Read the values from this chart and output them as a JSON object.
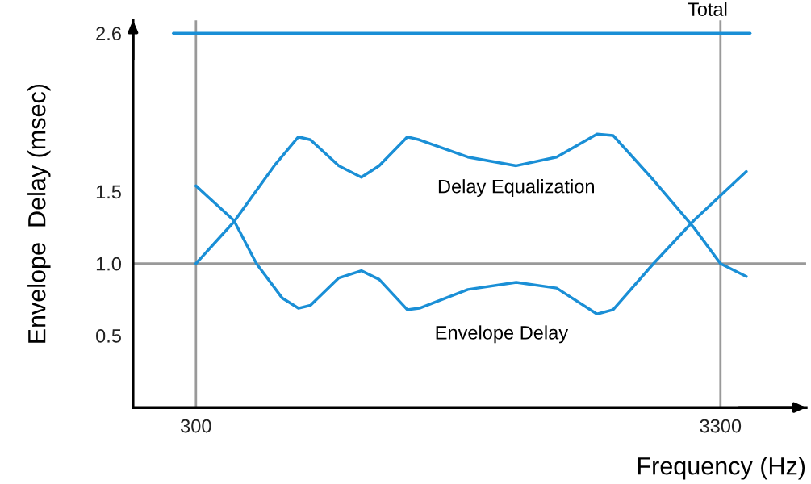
{
  "chart_data": {
    "type": "line",
    "xlabel": "Frequency (Hz)",
    "ylabel": "Envelope  Delay (msec)",
    "xlim": [
      -60,
      3790
    ],
    "ylim": [
      0,
      2.69
    ],
    "xticks": [
      300,
      3300
    ],
    "yticks": [
      {
        "value": 0.5,
        "label": "0.5"
      },
      {
        "value": 1.0,
        "label": "1.0"
      },
      {
        "value": 1.5,
        "label": "1.5"
      },
      {
        "value": 2.6,
        "label": "2.6"
      }
    ],
    "grid": false,
    "legend": false,
    "marker": "none",
    "line_style": "solid",
    "series": [
      {
        "name": "Total",
        "color": "#1a8fd6",
        "x": [
          171,
          3470
        ],
        "values": [
          2.6,
          2.6
        ]
      },
      {
        "name": "Delay Equalization",
        "color": "#1a8fd6",
        "x": [
          300,
          517,
          748,
          886,
          955,
          1117,
          1246,
          1348,
          1509,
          1578,
          1855,
          2132,
          2363,
          2594,
          2686,
          2917,
          3148,
          3300,
          3448
        ],
        "values": [
          1.0,
          1.29,
          1.68,
          1.88,
          1.86,
          1.68,
          1.6,
          1.68,
          1.88,
          1.86,
          1.74,
          1.68,
          1.74,
          1.9,
          1.89,
          1.58,
          1.25,
          1.0,
          0.91
        ]
      },
      {
        "name": "Envelope Delay",
        "color": "#1a8fd6",
        "x": [
          300,
          517,
          646,
          794,
          886,
          955,
          1117,
          1246,
          1348,
          1509,
          1578,
          1855,
          2132,
          2363,
          2594,
          2686,
          2917,
          3148,
          3448
        ],
        "values": [
          1.54,
          1.3,
          1.0,
          0.76,
          0.69,
          0.71,
          0.9,
          0.95,
          0.89,
          0.68,
          0.69,
          0.82,
          0.87,
          0.83,
          0.65,
          0.68,
          1.0,
          1.3,
          1.64
        ]
      }
    ],
    "ref_lines": [
      {
        "axis": "x",
        "value": 300,
        "color": "#999999"
      },
      {
        "axis": "x",
        "value": 3300,
        "color": "#999999"
      },
      {
        "axis": "y",
        "value": 1.0,
        "color": "#999999"
      }
    ]
  }
}
